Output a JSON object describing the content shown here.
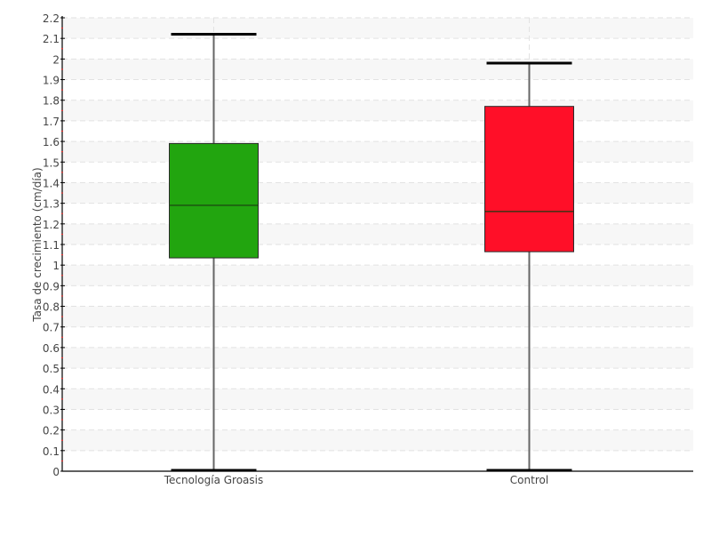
{
  "chart_data": {
    "type": "boxplot",
    "title": "",
    "xlabel": "",
    "ylabel": "Tasa de crecimiento (cm/día)",
    "ylim": [
      0,
      2.2
    ],
    "yticks": [
      "0",
      "0.1",
      "0.2",
      "0.3",
      "0.4",
      "0.5",
      "0.6",
      "0.7",
      "0.8",
      "0.9",
      "1",
      "1.1",
      "1.2",
      "1.3",
      "1.4",
      "1.5",
      "1.6",
      "1.7",
      "1.8",
      "1.9",
      "2",
      "2.1",
      "2.2"
    ],
    "grid": true,
    "categories": [
      "Tecnología Groasis",
      "Control"
    ],
    "boxes": [
      {
        "category": "Tecnología Groasis",
        "min": 0,
        "q1": 1.035,
        "median": 1.29,
        "q3": 1.59,
        "max": 2.12,
        "color": "#22a50f"
      },
      {
        "category": "Control",
        "min": 0,
        "q1": 1.065,
        "median": 1.26,
        "q3": 1.77,
        "max": 1.98,
        "color": "#ff0f28"
      }
    ]
  }
}
